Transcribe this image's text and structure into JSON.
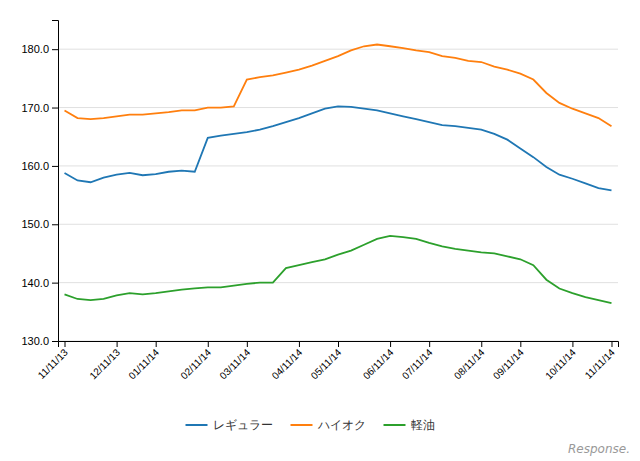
{
  "chart_data": {
    "type": "line",
    "categories": [
      "11/11/13",
      null,
      null,
      null,
      "12/11/13",
      null,
      null,
      "01/11/14",
      null,
      null,
      null,
      "02/11/14",
      null,
      null,
      "03/11/14",
      null,
      null,
      null,
      "04/11/14",
      null,
      null,
      "05/11/14",
      null,
      null,
      null,
      "06/11/14",
      null,
      null,
      "07/11/14",
      null,
      null,
      null,
      "08/11/14",
      null,
      null,
      "09/11/14",
      null,
      null,
      null,
      "10/11/14",
      null,
      null,
      "11/11/14"
    ],
    "series": [
      {
        "name": "レギュラー",
        "values": [
          158.8,
          157.5,
          157.2,
          158.0,
          158.5,
          158.8,
          158.4,
          158.6,
          159.0,
          159.2,
          159.0,
          164.8,
          165.2,
          165.5,
          165.8,
          166.2,
          166.8,
          167.5,
          168.2,
          169.0,
          169.8,
          170.2,
          170.1,
          169.8,
          169.5,
          169.0,
          168.5,
          168.0,
          167.5,
          167.0,
          166.8,
          166.5,
          166.2,
          165.5,
          164.5,
          163.0,
          161.5,
          159.8,
          158.5,
          157.8,
          157.0,
          156.2,
          155.8
        ]
      },
      {
        "name": "ハイオク",
        "values": [
          169.5,
          168.2,
          168.0,
          168.2,
          168.5,
          168.8,
          168.8,
          169.0,
          169.2,
          169.5,
          169.5,
          170.0,
          170.0,
          170.2,
          174.8,
          175.2,
          175.5,
          176.0,
          176.5,
          177.2,
          178.0,
          178.8,
          179.8,
          180.5,
          180.8,
          180.5,
          180.2,
          179.8,
          179.5,
          178.8,
          178.5,
          178.0,
          177.8,
          177.0,
          176.5,
          175.8,
          174.8,
          172.5,
          170.8,
          169.8,
          169.0,
          168.2,
          166.8
        ]
      },
      {
        "name": "軽油",
        "values": [
          138.0,
          137.2,
          137.0,
          137.2,
          137.8,
          138.2,
          138.0,
          138.2,
          138.5,
          138.8,
          139.0,
          139.2,
          139.2,
          139.5,
          139.8,
          140.0,
          140.0,
          142.5,
          143.0,
          143.5,
          144.0,
          144.8,
          145.5,
          146.5,
          147.5,
          148.0,
          147.8,
          147.5,
          146.8,
          146.2,
          145.8,
          145.5,
          145.2,
          145.0,
          144.5,
          144.0,
          143.0,
          140.5,
          139.0,
          138.2,
          137.5,
          137.0,
          136.5
        ]
      }
    ],
    "ylim": [
      130.0,
      185.0
    ],
    "yticks": [
      {
        "value": 130.0,
        "label": "130.0"
      },
      {
        "value": 140.0,
        "label": "140.0"
      },
      {
        "value": 150.0,
        "label": "150.0"
      },
      {
        "value": 160.0,
        "label": "160.0"
      },
      {
        "value": 170.0,
        "label": "170.0"
      },
      {
        "value": 180.0,
        "label": "180.0"
      }
    ],
    "grid": true,
    "legend": "bottom",
    "annotations": [
      "Response."
    ]
  }
}
